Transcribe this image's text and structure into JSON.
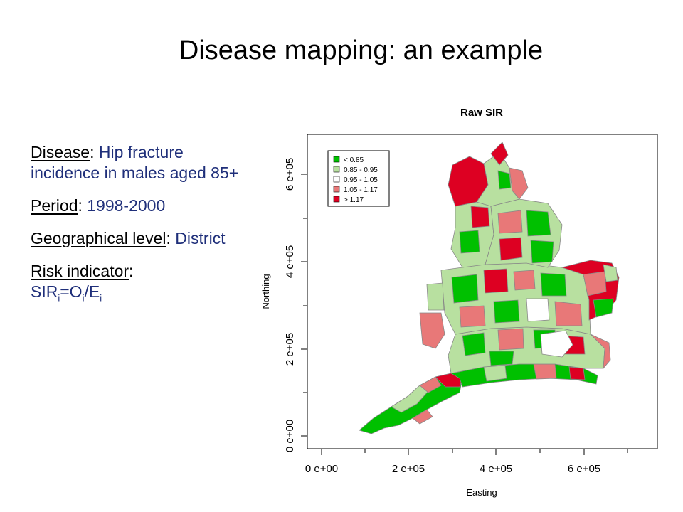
{
  "slide": {
    "title": "Disease mapping: an example"
  },
  "bullets": [
    {
      "label": "Disease",
      "value": "Hip fracture incidence in males aged 85+"
    },
    {
      "label": "Period",
      "value": "1998-2000"
    },
    {
      "label": "Geographical level",
      "value": "District"
    },
    {
      "label": "Risk indicator",
      "value_parts": [
        "SIR",
        "i",
        "=O",
        "i",
        "/E",
        "i"
      ]
    }
  ],
  "map": {
    "title": "Raw SIR",
    "xlabel": "Easting",
    "ylabel": "Northing",
    "x_ticks": [
      "0 e+00",
      "2 e+05",
      "4 e+05",
      "6 e+05"
    ],
    "y_ticks": [
      "0 e+00",
      "2 e+05",
      "4 e+05",
      "6 e+05"
    ],
    "legend": [
      {
        "label": "< 0.85",
        "color": "#00c000"
      },
      {
        "label": "0.85 - 0.95",
        "color": "#b8e0a0"
      },
      {
        "label": "0.95 - 1.05",
        "color": "#ffffff"
      },
      {
        "label": "1.05 - 1.17",
        "color": "#e87878"
      },
      {
        "label": "> 1.17",
        "color": "#dd0022"
      }
    ]
  }
}
